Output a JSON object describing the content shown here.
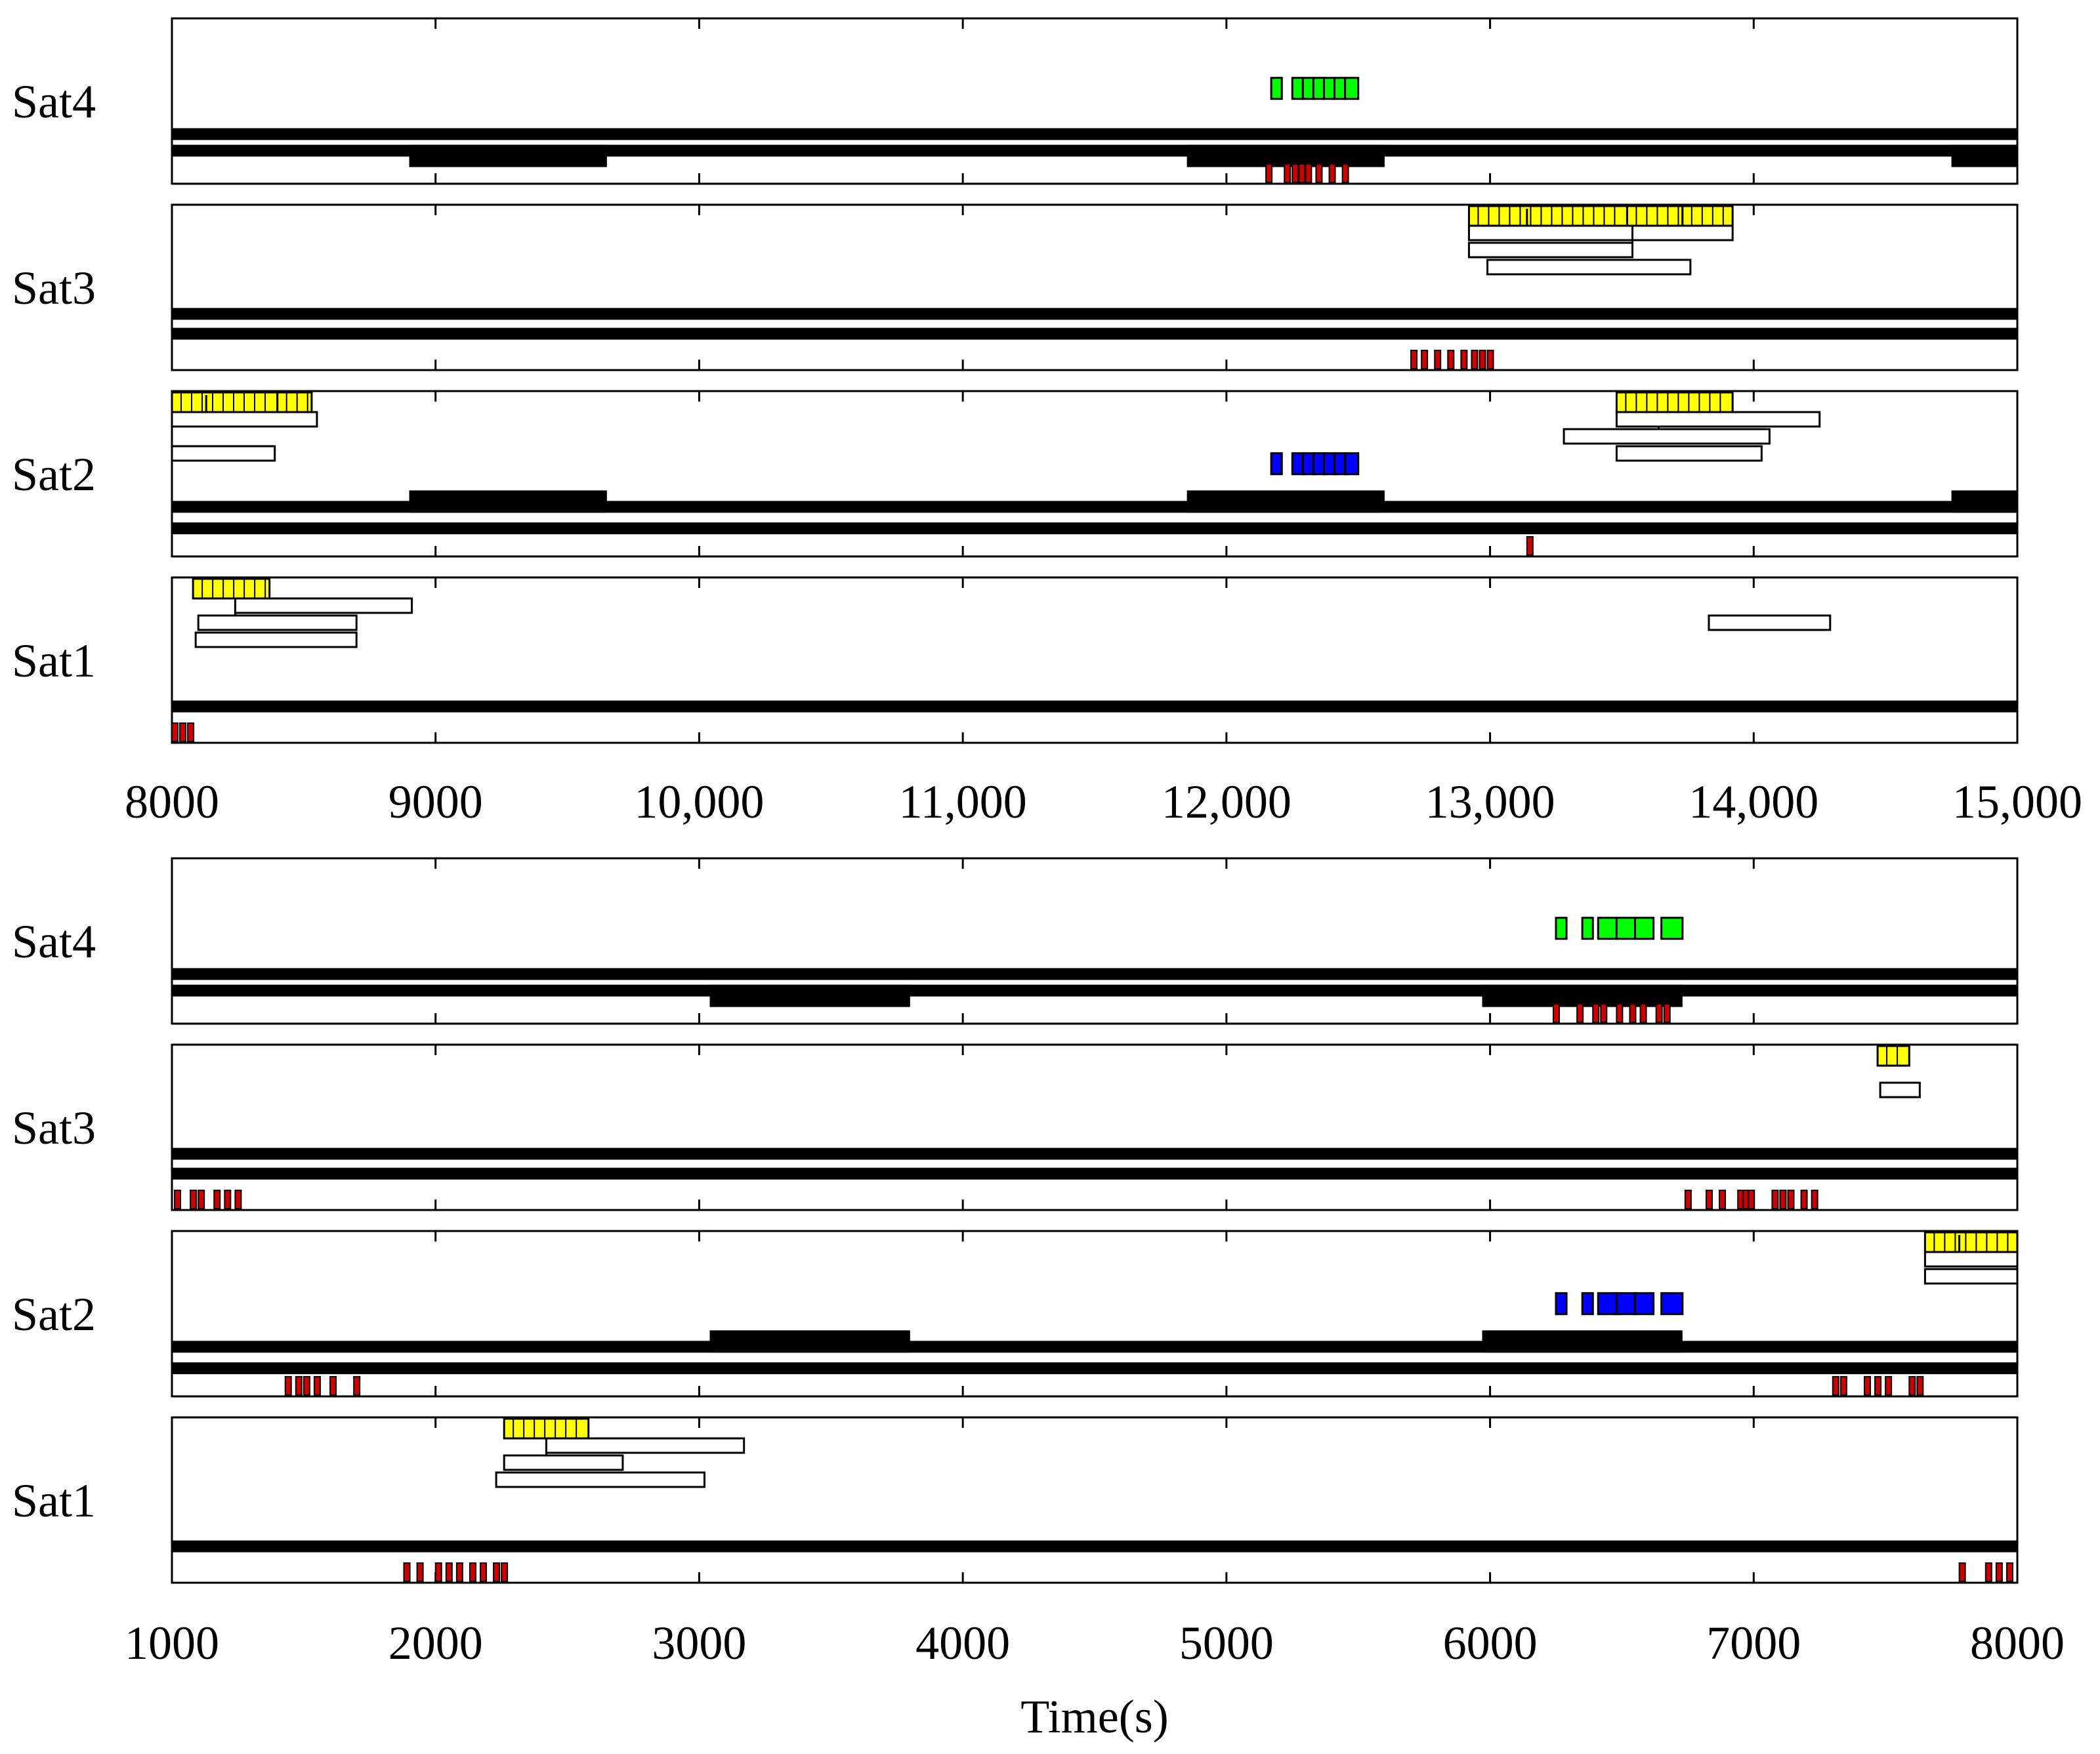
{
  "chart_data": {
    "type": "gantt",
    "colors": {
      "sat4_task": "#00ff00",
      "sat2_task": "#0000ff",
      "observation": "#ffff00",
      "downlink": "#cc0000",
      "window": "#ffffff",
      "eclipse": "#000000"
    },
    "panels": [
      {
        "xlim": [
          8000,
          15000
        ],
        "xticks": [
          8000,
          9000,
          10000,
          11000,
          12000,
          13000,
          14000,
          15000
        ],
        "xtick_labels": [
          "8000",
          "9000",
          "10,000",
          "11,000",
          "12,000",
          "13,000",
          "14,000",
          "15,000"
        ],
        "xlabel": "",
        "rows": [
          {
            "label": "Sat4",
            "green_blocks": [
              [
                12170,
                12210
              ],
              [
                12250,
                12290
              ],
              [
                12290,
                12330
              ],
              [
                12330,
                12370
              ],
              [
                12370,
                12410
              ],
              [
                12410,
                12450
              ],
              [
                12450,
                12500
              ]
            ],
            "blue_blocks": [],
            "yellow_blocks": [],
            "windows": [],
            "red_marks": [
              12150,
              12220,
              12250,
              12275,
              12300,
              12340,
              12390,
              12440
            ],
            "lines": [
              {
                "y": 0.7,
                "thick": false
              },
              {
                "y": 0.8,
                "thick": true,
                "segments": [
                  [
                    8900,
                    9650
                  ],
                  [
                    11850,
                    12600
                  ],
                  [
                    14750,
                    15000
                  ]
                ]
              }
            ]
          },
          {
            "label": "Sat3",
            "green_blocks": [],
            "blue_blocks": [],
            "yellow_blocks": [
              [
                12920,
                13520
              ],
              [
                13520,
                13730
              ],
              [
                13730,
                13920
              ]
            ],
            "windows": [
              {
                "start": 12920,
                "end": 13920,
                "row": 1,
                "tick": 13140
              },
              {
                "start": 12920,
                "end": 13540,
                "row": 2,
                "tick": 13540
              },
              {
                "start": 12990,
                "end": 13760,
                "row": 3
              }
            ],
            "red_marks": [
              12700,
              12740,
              12790,
              12840,
              12890,
              12930,
              12960,
              12990
            ],
            "lines": [
              {
                "y": 0.66,
                "thick": false
              },
              {
                "y": 0.78,
                "thick": false
              }
            ]
          },
          {
            "label": "Sat2",
            "green_blocks": [],
            "blue_blocks": [
              [
                12170,
                12210
              ],
              [
                12250,
                12290
              ],
              [
                12290,
                12330
              ],
              [
                12330,
                12370
              ],
              [
                12370,
                12410
              ],
              [
                12410,
                12450
              ],
              [
                12450,
                12500
              ]
            ],
            "yellow_blocks": [
              [
                8000,
                8400
              ],
              [
                8400,
                8530
              ],
              [
                13480,
                13920
              ]
            ],
            "windows": [
              {
                "start": 8000,
                "end": 8550,
                "row": 1,
                "tick": 8130
              },
              {
                "start": 8000,
                "end": 8390,
                "row": 3
              },
              {
                "start": 13280,
                "end": 14060,
                "row": 2,
                "tick": 13640
              },
              {
                "start": 13480,
                "end": 14250,
                "row": 1
              },
              {
                "start": 13480,
                "end": 14030,
                "row": 3
              }
            ],
            "red_marks": [
              13140
            ],
            "lines": [
              {
                "y": 0.7,
                "thick": false,
                "segments": [
                  [
                    8900,
                    9650
                  ],
                  [
                    11850,
                    12600
                  ],
                  [
                    14750,
                    15000
                  ]
                ]
              },
              {
                "y": 0.83,
                "thick": false
              }
            ]
          },
          {
            "label": "Sat1",
            "green_blocks": [],
            "blue_blocks": [],
            "yellow_blocks": [
              [
                8080,
                8370
              ]
            ],
            "windows": [
              {
                "start": 8240,
                "end": 8910,
                "row": 1
              },
              {
                "start": 8100,
                "end": 8700,
                "row": 2,
                "tick": 8240
              },
              {
                "start": 8090,
                "end": 8700,
                "row": 3
              },
              {
                "start": 13830,
                "end": 14290,
                "row": 2
              }
            ],
            "red_marks": [
              8000,
              8030,
              8060
            ],
            "lines": [
              {
                "y": 0.78,
                "thick": false
              }
            ]
          }
        ]
      },
      {
        "xlim": [
          1000,
          8000
        ],
        "xticks": [
          1000,
          2000,
          3000,
          4000,
          5000,
          6000,
          7000,
          8000
        ],
        "xtick_labels": [
          "1000",
          "2000",
          "3000",
          "4000",
          "5000",
          "6000",
          "7000",
          "8000"
        ],
        "xlabel": "Time(s)",
        "rows": [
          {
            "label": "Sat4",
            "green_blocks": [
              [
                6250,
                6290
              ],
              [
                6350,
                6390
              ],
              [
                6410,
                6480
              ],
              [
                6480,
                6550
              ],
              [
                6550,
                6620
              ],
              [
                6650,
                6730
              ]
            ],
            "blue_blocks": [],
            "yellow_blocks": [],
            "windows": [],
            "red_marks": [
              6240,
              6330,
              6390,
              6420,
              6480,
              6530,
              6570,
              6630,
              6660
            ],
            "lines": [
              {
                "y": 0.7,
                "thick": false
              },
              {
                "y": 0.8,
                "thick": true,
                "segments": [
                  [
                    3040,
                    3800
                  ],
                  [
                    5970,
                    6730
                  ]
                ]
              }
            ]
          },
          {
            "label": "Sat3",
            "green_blocks": [],
            "blue_blocks": [],
            "yellow_blocks": [
              [
                7470,
                7590
              ]
            ],
            "windows": [
              {
                "start": 7480,
                "end": 7630,
                "row": 2
              }
            ],
            "red_marks": [
              1010,
              1070,
              1100,
              1160,
              1200,
              1240,
              6740,
              6820,
              6870,
              6940,
              6960,
              6980,
              7070,
              7100,
              7130,
              7180,
              7220
            ],
            "lines": [
              {
                "y": 0.66,
                "thick": false
              },
              {
                "y": 0.78,
                "thick": false
              }
            ]
          },
          {
            "label": "Sat2",
            "green_blocks": [],
            "blue_blocks": [
              [
                6250,
                6290
              ],
              [
                6350,
                6390
              ],
              [
                6410,
                6480
              ],
              [
                6480,
                6550
              ],
              [
                6550,
                6620
              ],
              [
                6650,
                6730
              ]
            ],
            "yellow_blocks": [
              [
                7650,
                8000
              ]
            ],
            "windows": [
              {
                "start": 7650,
                "end": 8000,
                "row": 1,
                "tick": 7780
              },
              {
                "start": 7650,
                "end": 8000,
                "row": 2
              }
            ],
            "red_marks": [
              1430,
              1470,
              1500,
              1540,
              1600,
              1690,
              7300,
              7330,
              7420,
              7460,
              7500,
              7590,
              7620
            ],
            "lines": [
              {
                "y": 0.7,
                "thick": false,
                "segments": [
                  [
                    3040,
                    3800
                  ],
                  [
                    5970,
                    6730
                  ]
                ]
              },
              {
                "y": 0.83,
                "thick": false
              }
            ]
          },
          {
            "label": "Sat1",
            "green_blocks": [],
            "blue_blocks": [],
            "yellow_blocks": [
              [
                2260,
                2580
              ]
            ],
            "windows": [
              {
                "start": 2420,
                "end": 3170,
                "row": 1
              },
              {
                "start": 2260,
                "end": 2710,
                "row": 2,
                "tick": 2420
              },
              {
                "start": 2230,
                "end": 3020,
                "row": 3
              }
            ],
            "red_marks": [
              1880,
              1930,
              2000,
              2040,
              2080,
              2130,
              2170,
              2220,
              2250,
              7780,
              7880,
              7920,
              7960
            ],
            "lines": [
              {
                "y": 0.78,
                "thick": false
              }
            ]
          }
        ]
      }
    ]
  }
}
